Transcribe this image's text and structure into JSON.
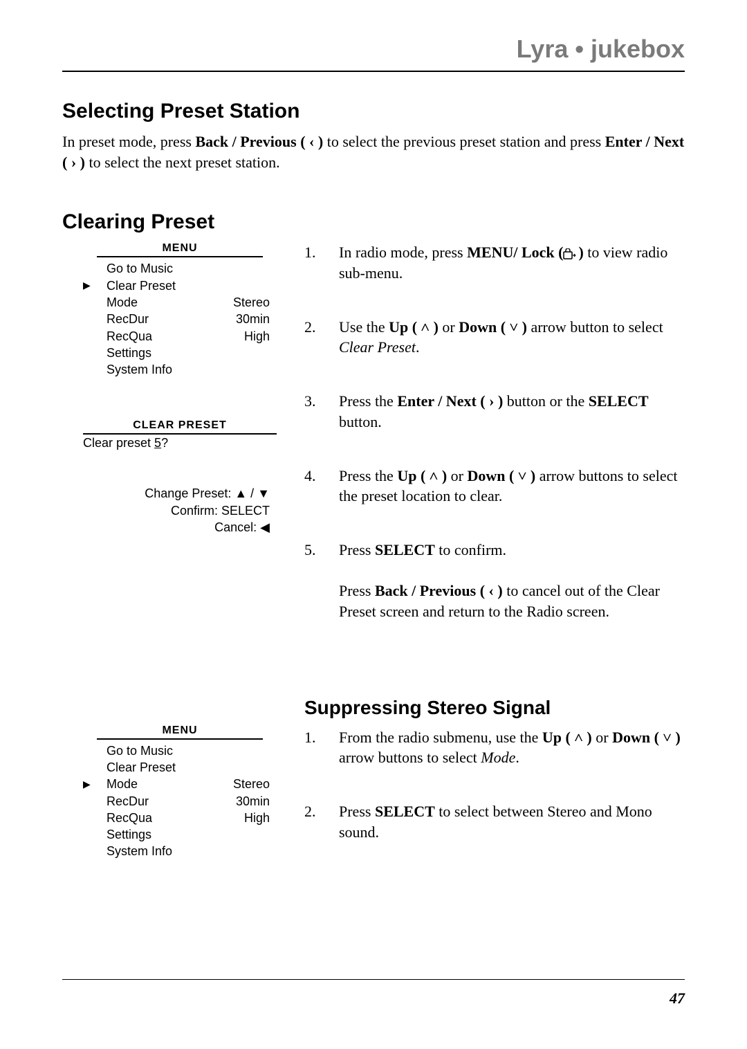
{
  "header": {
    "brand": "Lyra • jukebox"
  },
  "section1": {
    "title": "Selecting Preset Station",
    "intro_pre": "In preset mode, press ",
    "intro_bold1": "Back / Previous (",
    "intro_sym1": " ‹ ",
    "intro_bold1b": ")",
    "intro_mid1": " to select the previous preset station and press ",
    "intro_bold2": "Enter /  Next (",
    "intro_sym2": " › ",
    "intro_bold2b": ")",
    "intro_post": "  to select the next preset station."
  },
  "section2": {
    "title": "Clearing Preset"
  },
  "menu1": {
    "title": "MENU",
    "rows": [
      {
        "selected": false,
        "label": "Go to Music",
        "value": ""
      },
      {
        "selected": true,
        "label": "Clear Preset",
        "value": ""
      },
      {
        "selected": false,
        "label": "Mode",
        "value": "Stereo"
      },
      {
        "selected": false,
        "label": "RecDur",
        "value": "30min"
      },
      {
        "selected": false,
        "label": "RecQua",
        "value": "High"
      },
      {
        "selected": false,
        "label": "Settings",
        "value": ""
      },
      {
        "selected": false,
        "label": "System Info",
        "value": ""
      }
    ]
  },
  "clearbox": {
    "title": "CLEAR PRESET",
    "q_pre": "Clear preset ",
    "q_num": "5",
    "q_post": "?",
    "ctrl1": "Change Preset: ▲ / ▼",
    "ctrl2": "Confirm: SELECT",
    "ctrl3": "Cancel: ◀"
  },
  "steps_clear": [
    {
      "n": "1.",
      "pre": "In radio mode, press ",
      "b1": "MENU/ Lock (",
      "b1b": ")",
      "post": " to view radio sub-menu.",
      "has_lock": true
    },
    {
      "n": "2.",
      "pre": "Use the ",
      "b1": "Up (",
      "s1": " ˄ ",
      "b1b": ")",
      "mid": " or ",
      "b2": "Down (",
      "s2": " ˅ ",
      "b2b": ")",
      "post": " arrow button to select ",
      "it": "Clear Preset",
      "end": "."
    },
    {
      "n": "3.",
      "pre": "Press the ",
      "b1": "Enter / Next (",
      "s1": " › ",
      "b1b": ")",
      "mid": " button or the ",
      "b2": "SELECT",
      "post2": " button."
    },
    {
      "n": "4.",
      "pre": "Press the ",
      "b1": "Up (",
      "s1": " ˄ ",
      "b1b": ")",
      "mid": " or ",
      "b2": "Down (",
      "s2": " ˅ ",
      "b2b": ")",
      "post": " arrow buttons to select the preset location to clear."
    },
    {
      "n": "5.",
      "pre": "Press ",
      "b1": "SELECT",
      "post": " to confirm.",
      "extra_pre": "Press ",
      "extra_b": "Back / Previous (",
      "extra_s": " ‹ ",
      "extra_bb": ")",
      "extra_post": " to cancel out of the Clear Preset screen and return to the Radio screen."
    }
  ],
  "section3": {
    "title": "Suppressing Stereo Signal"
  },
  "menu2": {
    "title": "MENU",
    "rows": [
      {
        "selected": false,
        "label": "Go to Music",
        "value": ""
      },
      {
        "selected": false,
        "label": "Clear Preset",
        "value": ""
      },
      {
        "selected": true,
        "label": "Mode",
        "value": "Stereo"
      },
      {
        "selected": false,
        "label": "RecDur",
        "value": "30min"
      },
      {
        "selected": false,
        "label": "RecQua",
        "value": "High"
      },
      {
        "selected": false,
        "label": "Settings",
        "value": ""
      },
      {
        "selected": false,
        "label": "System Info",
        "value": ""
      }
    ]
  },
  "steps_stereo": [
    {
      "n": "1.",
      "pre": "From the radio submenu, use the ",
      "b1": "Up (",
      "s1": " ˄ ",
      "b1b": ")",
      "mid": " or ",
      "b2": "Down (",
      "s2": " ˅ ",
      "b2b": ")",
      "post": "  arrow buttons to select ",
      "it": "Mode",
      "end": "."
    },
    {
      "n": "2.",
      "pre": "Press ",
      "b1": "SELECT",
      "post": " to select between Stereo and Mono sound."
    }
  ],
  "pagenum": "47"
}
